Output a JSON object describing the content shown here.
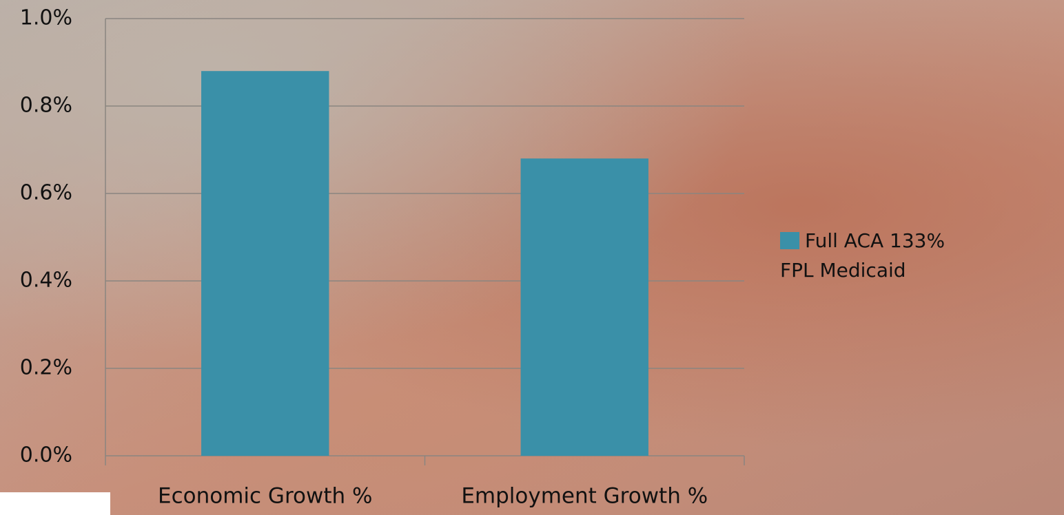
{
  "chart_data": {
    "type": "bar",
    "categories": [
      "Economic Growth %",
      "Employment Growth %"
    ],
    "series": [
      {
        "name": "Full ACA 133% FPL Medicaid",
        "color": "#3a90a8",
        "values": [
          0.88,
          0.68
        ]
      }
    ],
    "ylim": [
      0,
      1.0
    ],
    "yticks": [
      {
        "value": 0,
        "label": "0.0%"
      },
      {
        "value": 0.2,
        "label": "0.2%"
      },
      {
        "value": 0.4,
        "label": "0.4%"
      },
      {
        "value": 0.6,
        "label": "0.6%"
      },
      {
        "value": 0.8,
        "label": "0.8%"
      },
      {
        "value": 1.0,
        "label": "1.0%"
      }
    ],
    "grid": true,
    "legend": "right"
  }
}
